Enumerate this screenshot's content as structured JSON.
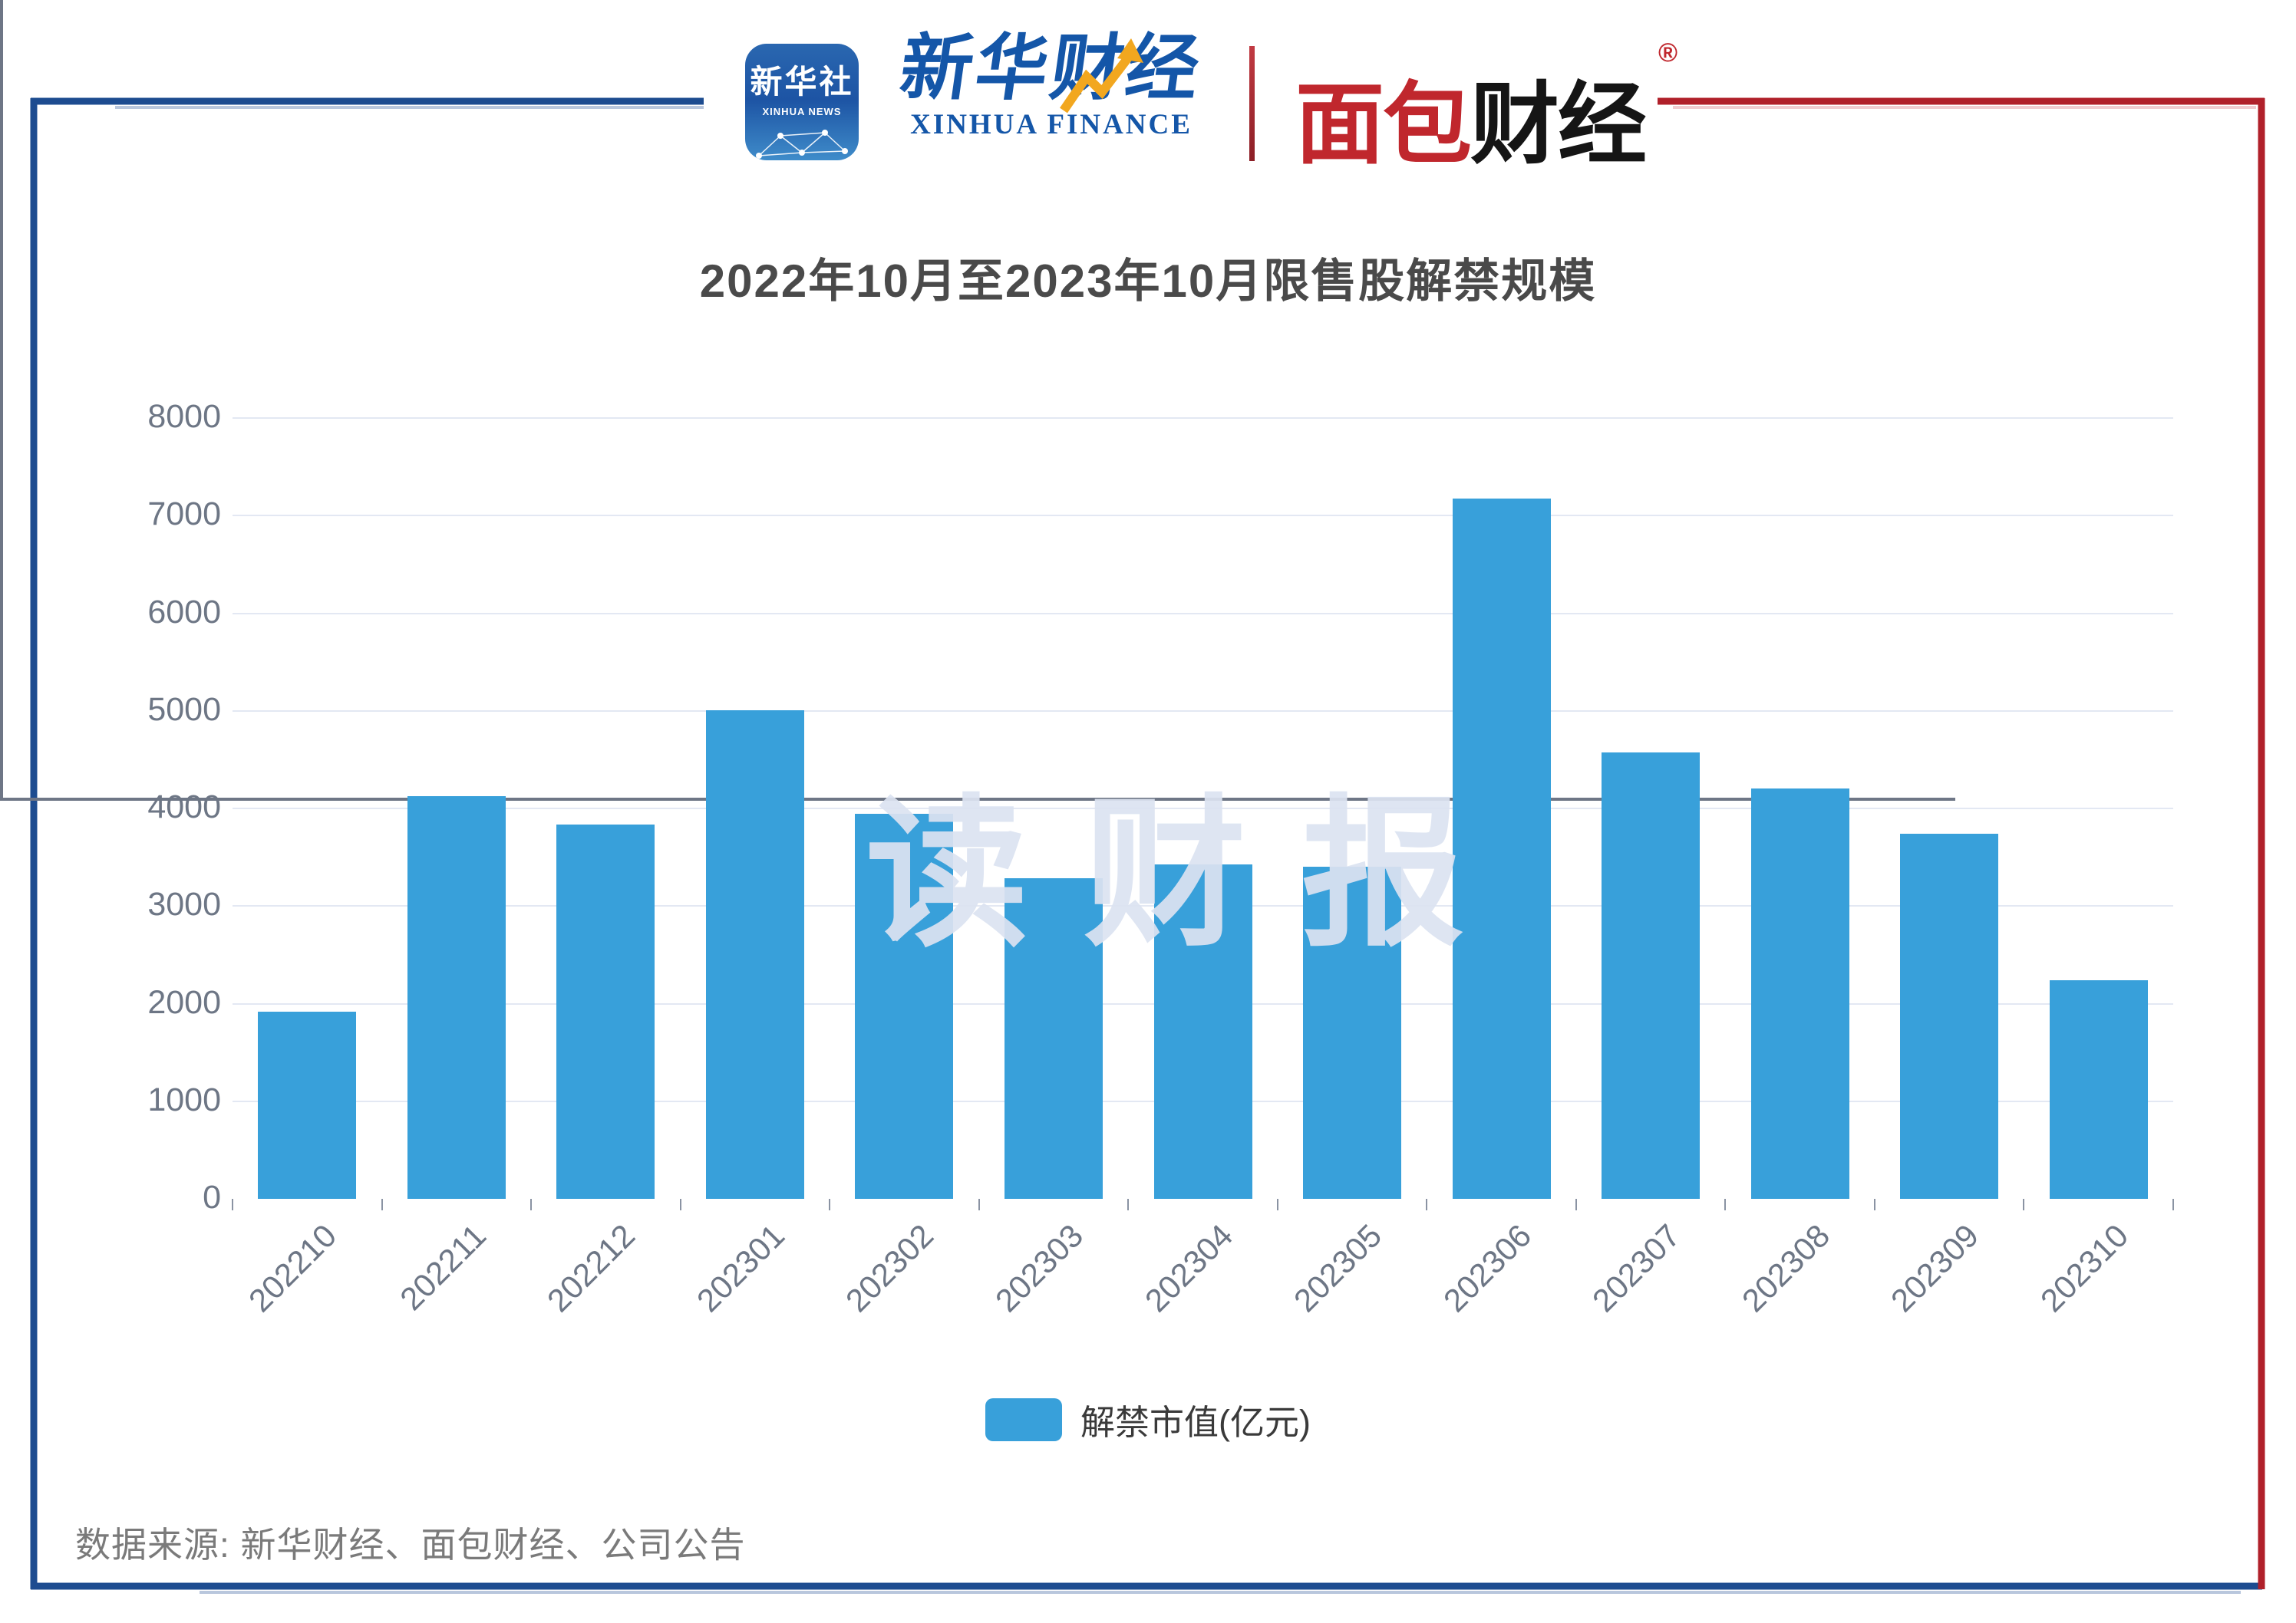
{
  "header": {
    "xinhua_icon": {
      "name_cn": "新华社",
      "name_en": "XINHUA NEWS"
    },
    "xinhua_finance": {
      "name_cn": "新华财经",
      "name_en": "XINHUA FINANCE"
    },
    "mianbao": {
      "part1": "面包",
      "part2": "财经",
      "registered_mark": "®"
    }
  },
  "title": "2022年10月至2023年10月限售股解禁规模",
  "watermark": "读财报",
  "legend": {
    "label": "解禁市值(亿元)"
  },
  "source": "数据来源: 新华财经、面包财经、公司公告",
  "colors": {
    "bar": "#38a0da",
    "frame_blue": "#1d4c90",
    "frame_red": "#b0202a",
    "grid": "#e3e8f3",
    "axis": "#6e7686",
    "title_text": "#4a4a4a",
    "watermark_text": "#dce3f1",
    "header_blue": "#1456a8",
    "mianbao_red": "#c0272d"
  },
  "chart_data": {
    "type": "bar",
    "title": "2022年10月至2023年10月限售股解禁规模",
    "categories": [
      "202210",
      "202211",
      "202212",
      "202301",
      "202302",
      "202303",
      "202304",
      "202305",
      "202306",
      "202307",
      "202308",
      "202309",
      "202310"
    ],
    "series": [
      {
        "name": "解禁市值(亿元)",
        "values": [
          1915,
          4123,
          3836,
          5008,
          3944,
          3287,
          3428,
          3404,
          7171,
          4571,
          4208,
          3738,
          2236
        ]
      }
    ],
    "xlabel": "",
    "ylabel": "",
    "ylim": [
      0,
      8000
    ],
    "ytick_interval": 1000,
    "grid": true,
    "legend_position": "bottom",
    "bar_color": "#38a0da"
  }
}
